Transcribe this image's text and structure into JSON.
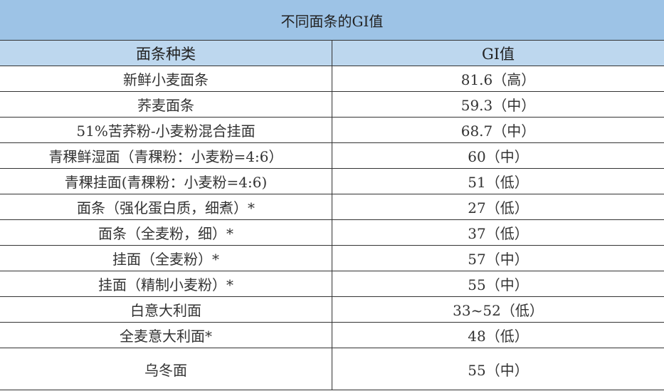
{
  "title": "不同面条的GI值",
  "colors": {
    "title_bg": "#9dc3e6",
    "header_bg": "#bdd7ee"
  },
  "headers": [
    "面条种类",
    "GI值"
  ],
  "rows": [
    {
      "name": "新鲜小麦面条",
      "gi": "81.6（高）"
    },
    {
      "name": "荞麦面条",
      "gi": "59.3（中）"
    },
    {
      "name": "51%苦荞粉-小麦粉混合挂面",
      "gi": "68.7（中）"
    },
    {
      "name": "青稞鲜湿面（青稞粉：小麦粉=4:6）",
      "gi": "60（中）"
    },
    {
      "name": "青稞挂面(青稞粉：小麦粉=4:6)",
      "gi": "51（低）"
    },
    {
      "name": "面条（强化蛋白质，细煮）*",
      "gi": "27（低）"
    },
    {
      "name": "面条（全麦粉，细）*",
      "gi": "37（低）"
    },
    {
      "name": "挂面（全麦粉）*",
      "gi": "57（中）"
    },
    {
      "name": "挂面（精制小麦粉）*",
      "gi": "55（中）"
    },
    {
      "name": "白意大利面",
      "gi": "33~52（低）"
    },
    {
      "name": "全麦意大利面*",
      "gi": "48（低）"
    },
    {
      "name": "乌冬面",
      "gi": "55（中）"
    }
  ]
}
